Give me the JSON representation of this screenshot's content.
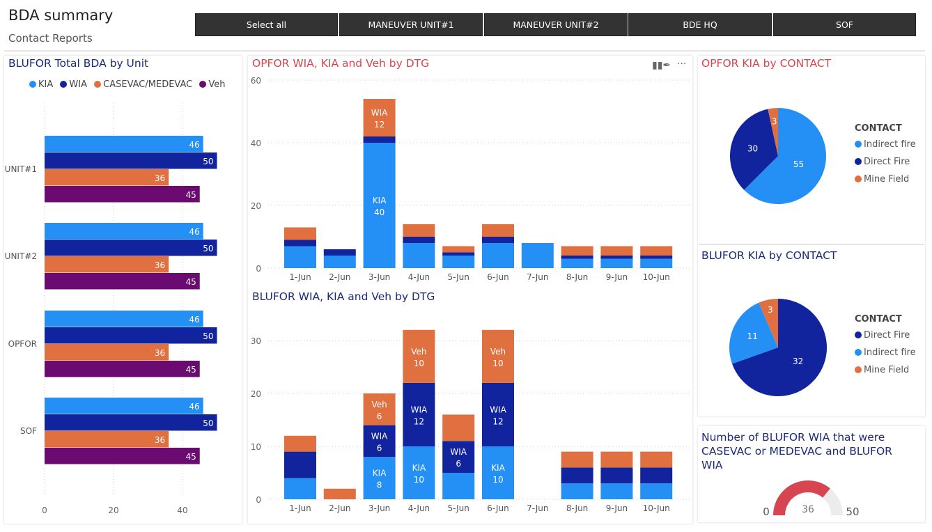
{
  "header": {
    "title": "BDA summary",
    "subtitle": "Contact Reports"
  },
  "slicers": [
    "Select all",
    "MANEUVER UNIT#1",
    "MANEUVER UNIT#2",
    "BDE HQ",
    "SOF"
  ],
  "colors": {
    "kia": "#2490f5",
    "wia": "#12239e",
    "casevac": "#e07040",
    "veh": "#6b0a70",
    "gauge": "#d64550",
    "gauge_bg": "#ececec",
    "title_navy": "#1b2a7a",
    "title_red": "#d9444f"
  },
  "icons": {
    "visual_toolbar": [
      "format-brush-icon",
      "more-options-icon"
    ]
  },
  "chart_data": [
    {
      "id": "blufor_total",
      "type": "bar",
      "orientation": "horizontal",
      "title": "BLUFOR Total BDA by Unit",
      "legend_position": "top",
      "categories": [
        "UNIT#1",
        "UNIT#2",
        "OPFOR",
        "SOF"
      ],
      "series": [
        {
          "name": "KIA",
          "color": "#2490f5",
          "values": [
            46,
            46,
            46,
            46
          ]
        },
        {
          "name": "WIA",
          "color": "#12239e",
          "values": [
            50,
            50,
            50,
            50
          ]
        },
        {
          "name": "CASEVAC/MEDEVAC",
          "color": "#e07040",
          "values": [
            36,
            36,
            36,
            36
          ]
        },
        {
          "name": "Veh",
          "color": "#6b0a70",
          "values": [
            45,
            45,
            45,
            45
          ]
        }
      ],
      "xticks": [
        0,
        20,
        40
      ],
      "xlim": [
        0,
        57
      ],
      "grid": true
    },
    {
      "id": "opfor_dtg",
      "type": "bar",
      "stacked": true,
      "title": "OPFOR WIA, KIA and Veh by DTG",
      "categories": [
        "1-Jun",
        "2-Jun",
        "3-Jun",
        "4-Jun",
        "5-Jun",
        "6-Jun",
        "7-Jun",
        "8-Jun",
        "9-Jun",
        "10-Jun"
      ],
      "series": [
        {
          "name": "KIA",
          "color": "#2490f5",
          "values": [
            7,
            4,
            40,
            8,
            4,
            8,
            8,
            3,
            3,
            3
          ]
        },
        {
          "name": "",
          "color": "#12239e",
          "values": [
            2,
            2,
            2,
            2,
            1,
            2,
            0,
            1,
            1,
            1
          ]
        },
        {
          "name": "WIA",
          "color": "#e07040",
          "values": [
            4,
            0,
            12,
            4,
            2,
            4,
            0,
            3,
            3,
            3
          ]
        }
      ],
      "yticks": [
        0,
        20,
        40,
        60
      ],
      "ylim": [
        0,
        60
      ],
      "grid": true
    },
    {
      "id": "blufor_dtg",
      "type": "bar",
      "stacked": true,
      "title": "BLUFOR WIA, KIA and Veh by DTG",
      "categories": [
        "1-Jun",
        "2-Jun",
        "3-Jun",
        "4-Jun",
        "5-Jun",
        "6-Jun",
        "7-Jun",
        "8-Jun",
        "9-Jun",
        "10-Jun"
      ],
      "series": [
        {
          "name": "KIA",
          "color": "#2490f5",
          "values": [
            4,
            0,
            8,
            10,
            5,
            10,
            0,
            3,
            3,
            3
          ]
        },
        {
          "name": "WIA",
          "color": "#12239e",
          "values": [
            5,
            0,
            6,
            12,
            6,
            12,
            0,
            3,
            3,
            3
          ]
        },
        {
          "name": "Veh",
          "color": "#e07040",
          "values": [
            3,
            2,
            6,
            10,
            5,
            10,
            0,
            3,
            3,
            3
          ]
        }
      ],
      "yticks": [
        0,
        10,
        20,
        30
      ],
      "ylim": [
        0,
        32
      ],
      "grid": true
    },
    {
      "id": "opfor_contact",
      "type": "pie",
      "title": "OPFOR KIA by CONTACT",
      "legend_title": "CONTACT",
      "legend_position": "right",
      "slices": [
        {
          "label": "Indirect fire",
          "value": 55,
          "color": "#2490f5"
        },
        {
          "label": "Direct Fire",
          "value": 30,
          "color": "#12239e"
        },
        {
          "label": "Mine Field",
          "value": 3,
          "color": "#e07040"
        }
      ]
    },
    {
      "id": "blufor_contact",
      "type": "pie",
      "title": "BLUFOR KIA by CONTACT",
      "legend_title": "CONTACT",
      "legend_position": "right",
      "slices": [
        {
          "label": "Direct Fire",
          "value": 32,
          "color": "#12239e"
        },
        {
          "label": "Indirect fire",
          "value": 11,
          "color": "#2490f5"
        },
        {
          "label": "Mine Field",
          "value": 3,
          "color": "#e07040"
        }
      ]
    },
    {
      "id": "casevac_gauge",
      "type": "gauge",
      "title": "Number of BLUFOR WIA that were CASEVAC or MEDEVAC and BLUFOR WIA",
      "min": 0,
      "max": 50,
      "value": 36,
      "min_label": "0",
      "max_label": "50",
      "value_label": "36"
    }
  ]
}
